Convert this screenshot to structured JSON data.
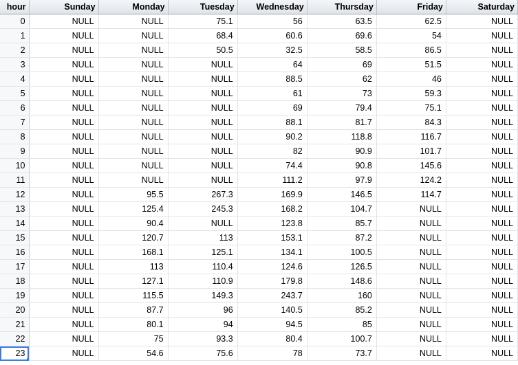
{
  "columns": [
    "hour",
    "Sunday",
    "Monday",
    "Tuesday",
    "Wednesday",
    "Thursday",
    "Friday",
    "Saturday"
  ],
  "rows": [
    [
      "0",
      "NULL",
      "NULL",
      "75.1",
      "56",
      "63.5",
      "62.5",
      "NULL"
    ],
    [
      "1",
      "NULL",
      "NULL",
      "68.4",
      "60.6",
      "69.6",
      "54",
      "NULL"
    ],
    [
      "2",
      "NULL",
      "NULL",
      "50.5",
      "32.5",
      "58.5",
      "86.5",
      "NULL"
    ],
    [
      "3",
      "NULL",
      "NULL",
      "NULL",
      "64",
      "69",
      "51.5",
      "NULL"
    ],
    [
      "4",
      "NULL",
      "NULL",
      "NULL",
      "88.5",
      "62",
      "46",
      "NULL"
    ],
    [
      "5",
      "NULL",
      "NULL",
      "NULL",
      "61",
      "73",
      "59.3",
      "NULL"
    ],
    [
      "6",
      "NULL",
      "NULL",
      "NULL",
      "69",
      "79.4",
      "75.1",
      "NULL"
    ],
    [
      "7",
      "NULL",
      "NULL",
      "NULL",
      "88.1",
      "81.7",
      "84.3",
      "NULL"
    ],
    [
      "8",
      "NULL",
      "NULL",
      "NULL",
      "90.2",
      "118.8",
      "116.7",
      "NULL"
    ],
    [
      "9",
      "NULL",
      "NULL",
      "NULL",
      "82",
      "90.9",
      "101.7",
      "NULL"
    ],
    [
      "10",
      "NULL",
      "NULL",
      "NULL",
      "74.4",
      "90.8",
      "145.6",
      "NULL"
    ],
    [
      "11",
      "NULL",
      "NULL",
      "NULL",
      "111.2",
      "97.9",
      "124.2",
      "NULL"
    ],
    [
      "12",
      "NULL",
      "95.5",
      "267.3",
      "169.9",
      "146.5",
      "114.7",
      "NULL"
    ],
    [
      "13",
      "NULL",
      "125.4",
      "245.3",
      "168.2",
      "104.7",
      "NULL",
      "NULL"
    ],
    [
      "14",
      "NULL",
      "90.4",
      "NULL",
      "123.8",
      "85.7",
      "NULL",
      "NULL"
    ],
    [
      "15",
      "NULL",
      "120.7",
      "113",
      "153.1",
      "87.2",
      "NULL",
      "NULL"
    ],
    [
      "16",
      "NULL",
      "168.1",
      "125.1",
      "134.1",
      "100.5",
      "NULL",
      "NULL"
    ],
    [
      "17",
      "NULL",
      "113",
      "110.4",
      "124.6",
      "126.5",
      "NULL",
      "NULL"
    ],
    [
      "18",
      "NULL",
      "127.1",
      "110.9",
      "179.8",
      "148.6",
      "NULL",
      "NULL"
    ],
    [
      "19",
      "NULL",
      "115.5",
      "149.3",
      "243.7",
      "160",
      "NULL",
      "NULL"
    ],
    [
      "20",
      "NULL",
      "87.7",
      "96",
      "140.5",
      "85.2",
      "NULL",
      "NULL"
    ],
    [
      "21",
      "NULL",
      "80.1",
      "94",
      "94.5",
      "85",
      "NULL",
      "NULL"
    ],
    [
      "22",
      "NULL",
      "75",
      "93.3",
      "80.4",
      "100.7",
      "NULL",
      "NULL"
    ],
    [
      "23",
      "NULL",
      "54.6",
      "75.6",
      "78",
      "73.7",
      "NULL",
      "NULL"
    ]
  ],
  "selected_row": 23,
  "colors": {
    "selection": "#3b7ddd",
    "header_bg": "#e6eaef",
    "grid_line": "#e1e4e8"
  }
}
